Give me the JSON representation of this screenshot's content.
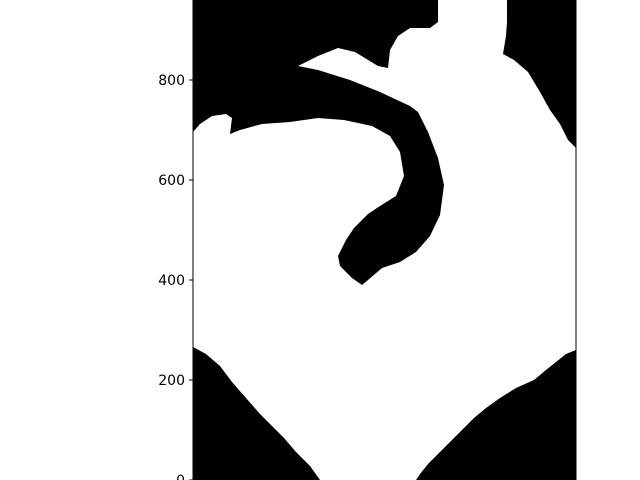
{
  "chart_data": {
    "type": "heatmap",
    "title": "",
    "xlabel": "",
    "ylabel": "",
    "colormap": [
      "#000000",
      "#ffffff"
    ],
    "y_ticks": [
      {
        "value": 0,
        "label": "0"
      },
      {
        "value": 200,
        "label": "200"
      },
      {
        "value": 400,
        "label": "400"
      },
      {
        "value": 600,
        "label": "600"
      },
      {
        "value": 800,
        "label": "800"
      }
    ],
    "ylim": [
      0,
      960
    ],
    "xlim": [
      0,
      768
    ],
    "grid": false,
    "legend": "none"
  }
}
